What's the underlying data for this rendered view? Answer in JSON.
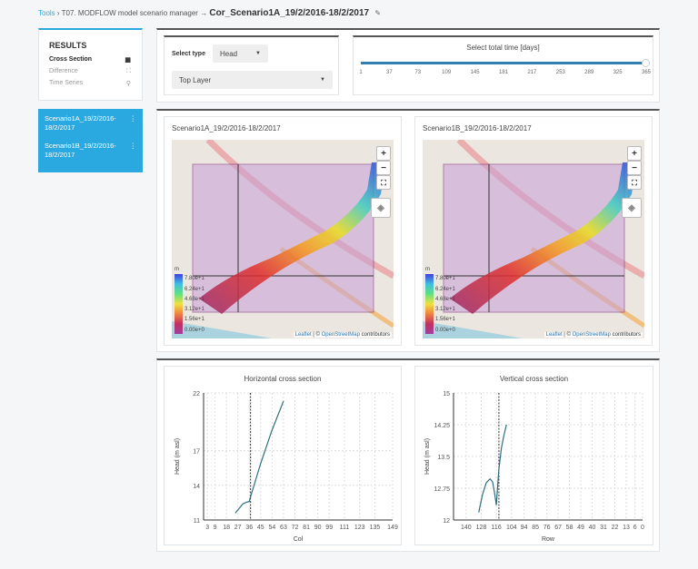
{
  "breadcrumb": {
    "root": "Tools",
    "parent": "T07. MODFLOW model scenario manager",
    "current": "Cor_Scenario1A_19/2/2016-18/2/2017"
  },
  "sidebar": {
    "title": "RESULTS",
    "items": [
      {
        "label": "Cross Section",
        "icon": "calendar-icon",
        "active": true
      },
      {
        "label": "Difference",
        "icon": "expand-icon",
        "active": false
      },
      {
        "label": "Time Series",
        "icon": "map-pin-icon",
        "active": false
      }
    ]
  },
  "scenarios": [
    {
      "label": "Scenario1A_19/2/2016-18/2/2017"
    },
    {
      "label": "Scenario1B_19/2/2016-18/2/2017"
    }
  ],
  "controls": {
    "type_label": "Select type",
    "type_value": "Head",
    "layer_value": "Top Layer"
  },
  "time": {
    "title": "Select total time [days]",
    "ticks": [
      "1",
      "37",
      "73",
      "109",
      "145",
      "181",
      "217",
      "253",
      "289",
      "325",
      "365"
    ],
    "value": 365,
    "min": 1,
    "max": 365
  },
  "maps": [
    {
      "title": "Scenario1A_19/2/2016-18/2/2017"
    },
    {
      "title": "Scenario1B_19/2/2016-18/2/2017"
    }
  ],
  "map_legend": {
    "unit": "m",
    "labels": [
      "7.80e+1",
      "6.24e+1",
      "4.68e+1",
      "3.12e+1",
      "1.56e+1",
      "0.00e+0"
    ]
  },
  "map_attrib": {
    "leaflet": "Leaflet",
    "sep": " | © ",
    "osm": "OpenStreetMap",
    "rest": " contributors"
  },
  "map_controls": {
    "zoom_in": "+",
    "zoom_out": "−"
  },
  "chart_data": [
    {
      "type": "line",
      "title": "Horizontal cross section",
      "xlabel": "Col",
      "ylabel": "Head (m asl)",
      "xlim": [
        0,
        149
      ],
      "ylim": [
        11,
        22
      ],
      "xticks": [
        3,
        9,
        18,
        27,
        36,
        45,
        54,
        63,
        72,
        81,
        90,
        99,
        111,
        123,
        135,
        149
      ],
      "yticks": [
        11,
        14,
        17,
        22
      ],
      "marker_x": 37,
      "x": [
        25,
        28,
        31,
        34,
        36,
        37,
        45,
        54,
        63
      ],
      "y": [
        11.6,
        12.0,
        12.4,
        12.55,
        12.6,
        13.0,
        15.9,
        18.8,
        21.3
      ]
    },
    {
      "type": "line",
      "title": "Vertical cross section",
      "xlabel": "Row",
      "ylabel": "Head (m asl)",
      "xlim": [
        150,
        0
      ],
      "ylim": [
        12,
        15
      ],
      "xticks": [
        140,
        128,
        116,
        104,
        94,
        85,
        76,
        67,
        58,
        49,
        40,
        31,
        22,
        13,
        6,
        0
      ],
      "yticks": [
        12,
        12.75,
        13.5,
        14.25,
        15
      ],
      "yticklabels": [
        "12",
        "12.75",
        "13.5",
        "14.25",
        "15"
      ],
      "marker_x": 114,
      "x": [
        130,
        127,
        124,
        121,
        119,
        117.5,
        116,
        115,
        114,
        112,
        110,
        108
      ],
      "y": [
        12.18,
        12.6,
        12.88,
        12.97,
        12.9,
        12.65,
        12.35,
        12.8,
        13.2,
        13.7,
        14.0,
        14.25
      ]
    }
  ]
}
